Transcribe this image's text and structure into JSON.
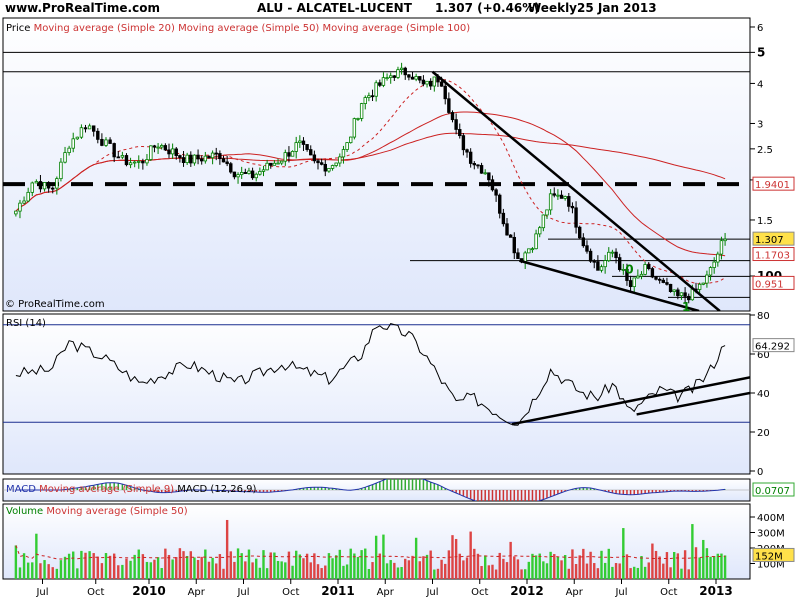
{
  "header": {
    "site": "www.ProRealTime.com",
    "symbol": "ALU - ALCATEL-LUCENT",
    "quote": "1.307 (+0.46%)",
    "period": "Weekly",
    "date": "25 Jan 2013"
  },
  "watermark": "© ProRealTime.com",
  "price_panel": {
    "label": "Price",
    "ma_labels": [
      "Moving average (Simple 20)",
      "Moving average (Simple 50)",
      "Moving average (Simple 100)"
    ],
    "y_ticks": [
      "6",
      "5",
      "4",
      "3",
      "2.5",
      "2",
      "1.5",
      "1"
    ],
    "bold_ticks": [
      "5",
      "1"
    ],
    "value_labels": [
      {
        "text": "1.9401",
        "value": 1.9401,
        "style": "red"
      },
      {
        "text": "1.307",
        "value": 1.307,
        "style": "yellow"
      },
      {
        "text": "1.1703",
        "value": 1.1703,
        "style": "red"
      },
      {
        "text": "0.951",
        "value": 0.951,
        "style": "red"
      }
    ],
    "marks": [
      {
        "text": "0"
      },
      {
        "text": "1"
      }
    ]
  },
  "rsi_panel": {
    "label": "RSI (14)",
    "y_ticks": [
      "100",
      "80",
      "60",
      "40",
      "20",
      "0"
    ],
    "bold_ticks": [
      "100"
    ],
    "value_label": "64.292",
    "levels": [
      75,
      25
    ]
  },
  "macd_panel": {
    "labels": [
      "MACD",
      "Moving average (Simple 9)",
      "MACD (12,26,9)"
    ],
    "value_label": "0.0707"
  },
  "volume_panel": {
    "label": "Volume",
    "ma_label": "Moving average (Simple 50)",
    "y_ticks": [
      "400M",
      "300M",
      "200M",
      "100M"
    ],
    "value_label": "152M"
  },
  "x_axis": {
    "labels": [
      "Jul",
      "Oct",
      "2010",
      "Apr",
      "Jul",
      "Oct",
      "2011",
      "Apr",
      "Jul",
      "Oct",
      "2012",
      "Apr",
      "Jul",
      "Oct",
      "2013"
    ],
    "bold": [
      "2010",
      "2011",
      "2012",
      "2013"
    ]
  },
  "colors": {
    "up": "#008000",
    "down": "#000000",
    "ma_red": "#cc2222",
    "panel_bg_top": "#ffffff",
    "panel_bg_bottom": "#dfe7fb",
    "level_line": "#1a2f8f",
    "vol_up": "#33cc33",
    "vol_down": "#dd4444"
  },
  "chart_data": {
    "type": "candlestick",
    "title": "ALU - ALCATEL-LUCENT",
    "period": "Weekly",
    "y_scale": "log",
    "price_range": [
      0.78,
      6.4
    ],
    "price_keypoints": [
      {
        "t": "2009-05",
        "v": 1.6
      },
      {
        "t": "2009-06",
        "v": 2.0
      },
      {
        "t": "2009-07",
        "v": 1.85
      },
      {
        "t": "2009-08",
        "v": 2.6
      },
      {
        "t": "2009-09",
        "v": 3.0
      },
      {
        "t": "2009-10",
        "v": 2.6
      },
      {
        "t": "2009-11",
        "v": 2.3
      },
      {
        "t": "2009-12",
        "v": 2.25
      },
      {
        "t": "2010-01",
        "v": 2.6
      },
      {
        "t": "2010-03",
        "v": 2.3
      },
      {
        "t": "2010-05",
        "v": 2.4
      },
      {
        "t": "2010-06",
        "v": 2.1
      },
      {
        "t": "2010-07",
        "v": 2.05
      },
      {
        "t": "2010-09",
        "v": 2.35
      },
      {
        "t": "2010-10",
        "v": 2.6
      },
      {
        "t": "2010-11",
        "v": 2.25
      },
      {
        "t": "2010-12",
        "v": 2.2
      },
      {
        "t": "2011-01",
        "v": 2.5
      },
      {
        "t": "2011-02",
        "v": 3.5
      },
      {
        "t": "2011-03",
        "v": 3.9
      },
      {
        "t": "2011-04",
        "v": 4.3
      },
      {
        "t": "2011-05",
        "v": 4.35
      },
      {
        "t": "2011-06",
        "v": 3.9
      },
      {
        "t": "2011-07",
        "v": 4.2
      },
      {
        "t": "2011-08",
        "v": 2.8
      },
      {
        "t": "2011-09",
        "v": 2.3
      },
      {
        "t": "2011-10",
        "v": 2.1
      },
      {
        "t": "2011-11",
        "v": 1.5
      },
      {
        "t": "2011-12",
        "v": 1.12
      },
      {
        "t": "2012-01",
        "v": 1.3
      },
      {
        "t": "2012-02",
        "v": 1.75
      },
      {
        "t": "2012-03",
        "v": 1.8
      },
      {
        "t": "2012-04",
        "v": 1.3
      },
      {
        "t": "2012-05",
        "v": 1.05
      },
      {
        "t": "2012-06",
        "v": 1.2
      },
      {
        "t": "2012-07",
        "v": 0.92
      },
      {
        "t": "2012-08",
        "v": 1.05
      },
      {
        "t": "2012-09",
        "v": 0.95
      },
      {
        "t": "2012-10",
        "v": 0.86
      },
      {
        "t": "2012-11",
        "v": 0.88
      },
      {
        "t": "2012-12",
        "v": 1.0
      },
      {
        "t": "2013-01",
        "v": 1.307
      }
    ],
    "moving_averages": [
      {
        "name": "Moving average (Simple 20)",
        "style": "dashed"
      },
      {
        "name": "Moving average (Simple 50)",
        "style": "solid"
      },
      {
        "name": "Moving average (Simple 100)",
        "style": "solid"
      }
    ],
    "horizontal_lines": [
      5.0,
      4.35,
      1.9401,
      1.307,
      1.12,
      1.0,
      0.86
    ],
    "rsi": {
      "range": [
        0,
        100
      ],
      "keypoints": [
        {
          "t": "2009-05",
          "v": 50
        },
        {
          "t": "2009-07",
          "v": 52
        },
        {
          "t": "2009-08",
          "v": 66
        },
        {
          "t": "2009-10",
          "v": 58
        },
        {
          "t": "2009-12",
          "v": 45
        },
        {
          "t": "2010-03",
          "v": 55
        },
        {
          "t": "2010-06",
          "v": 45
        },
        {
          "t": "2010-09",
          "v": 55
        },
        {
          "t": "2010-12",
          "v": 47
        },
        {
          "t": "2011-02",
          "v": 60
        },
        {
          "t": "2011-03",
          "v": 76
        },
        {
          "t": "2011-05",
          "v": 70
        },
        {
          "t": "2011-06",
          "v": 60
        },
        {
          "t": "2011-08",
          "v": 35
        },
        {
          "t": "2011-09",
          "v": 38
        },
        {
          "t": "2011-11",
          "v": 28
        },
        {
          "t": "2011-12",
          "v": 25
        },
        {
          "t": "2012-01",
          "v": 38
        },
        {
          "t": "2012-02",
          "v": 52
        },
        {
          "t": "2012-04",
          "v": 40
        },
        {
          "t": "2012-05",
          "v": 38
        },
        {
          "t": "2012-06",
          "v": 45
        },
        {
          "t": "2012-07",
          "v": 30
        },
        {
          "t": "2012-09",
          "v": 42
        },
        {
          "t": "2012-10",
          "v": 38
        },
        {
          "t": "2012-11",
          "v": 42
        },
        {
          "t": "2012-12",
          "v": 50
        },
        {
          "t": "2013-01",
          "v": 64.292
        }
      ]
    },
    "macd_last": 0.0707,
    "volume": {
      "unit": "M",
      "last": 152,
      "range": [
        0,
        450
      ]
    },
    "x_labels": [
      "Jul",
      "Oct",
      "2010",
      "Apr",
      "Jul",
      "Oct",
      "2011",
      "Apr",
      "Jul",
      "Oct",
      "2012",
      "Apr",
      "Jul",
      "Oct",
      "2013"
    ]
  }
}
